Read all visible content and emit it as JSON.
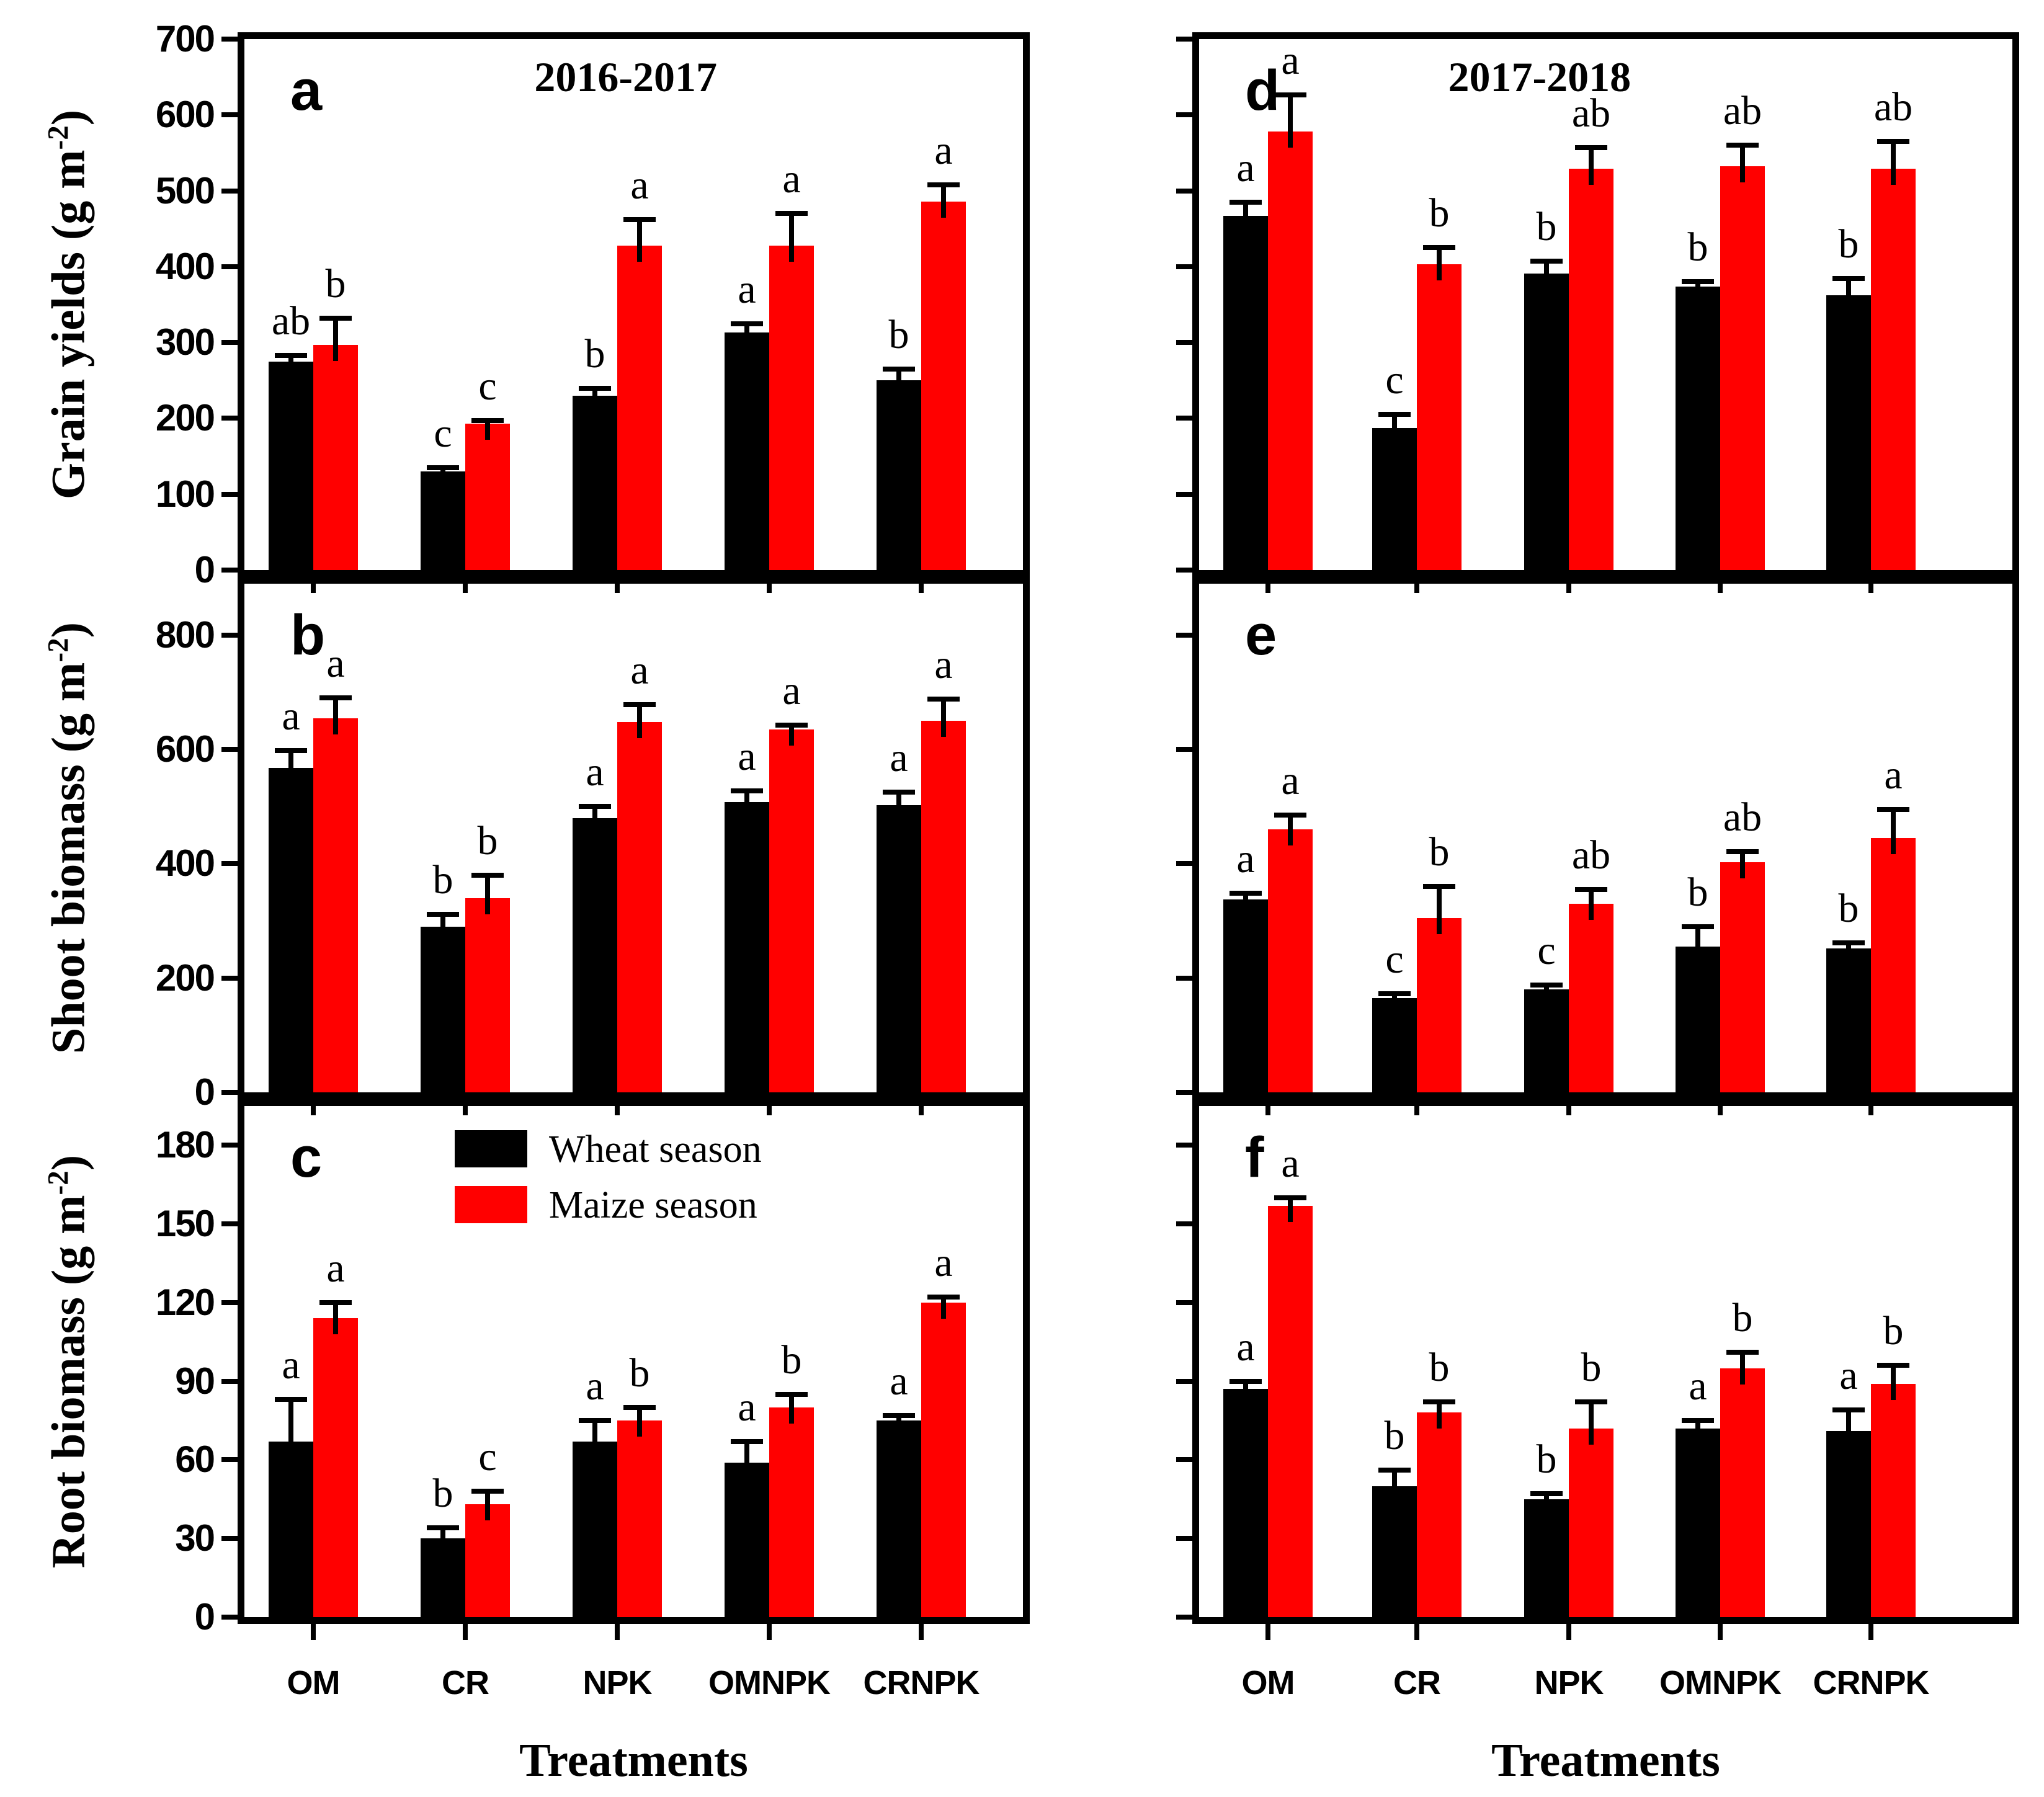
{
  "figure": {
    "background": "#ffffff",
    "bar_colors": {
      "wheat": "#000000",
      "maize": "#ff0000"
    },
    "legend": {
      "items": [
        {
          "label": "Wheat season",
          "color": "#000000"
        },
        {
          "label": "Maize season",
          "color": "#ff0000"
        }
      ],
      "position": "inside panel c, top center"
    },
    "x_axis": {
      "label": "Treatments",
      "categories": [
        "OM",
        "CR",
        "NPK",
        "OMNPK",
        "CRNPK"
      ]
    },
    "columns": [
      {
        "title": "2016-2017"
      },
      {
        "title": "2017-2018"
      }
    ],
    "rows": [
      {
        "ylabel": "Grain yields (g m⁻²)",
        "ylim": [
          0,
          700
        ],
        "yticks": [
          0,
          100,
          200,
          300,
          400,
          500,
          600,
          700
        ]
      },
      {
        "ylabel": "Shoot biomass (g m⁻²)",
        "ylim": [
          0,
          890
        ],
        "yticks": [
          0,
          200,
          400,
          600,
          800
        ]
      },
      {
        "ylabel": "Root biomass (g m⁻²)",
        "ylim": [
          0,
          195
        ],
        "yticks": [
          0,
          30,
          60,
          90,
          120,
          150,
          180
        ]
      }
    ]
  },
  "chart_data": [
    {
      "type": "bar",
      "panel_letter": "a",
      "row": 0,
      "col": 0,
      "title": "2016-2017",
      "categories": [
        "OM",
        "CR",
        "NPK",
        "OMNPK",
        "CRNPK"
      ],
      "ylim": [
        0,
        700
      ],
      "grid": false,
      "series": [
        {
          "name": "Wheat season",
          "color_key": "wheat",
          "values": [
            275,
            130,
            230,
            313,
            250
          ],
          "errors": [
            8,
            5,
            10,
            12,
            15
          ],
          "sig_letters": [
            "ab",
            "c",
            "b",
            "a",
            "b"
          ]
        },
        {
          "name": "Maize season",
          "color_key": "maize",
          "values": [
            297,
            193,
            428,
            428,
            486
          ],
          "errors": [
            35,
            4,
            34,
            42,
            22
          ],
          "sig_letters": [
            "b",
            "c",
            "a",
            "a",
            "a"
          ]
        }
      ]
    },
    {
      "type": "bar",
      "panel_letter": "d",
      "row": 0,
      "col": 1,
      "title": "2017-2018",
      "categories": [
        "OM",
        "CR",
        "NPK",
        "OMNPK",
        "CRNPK"
      ],
      "ylim": [
        0,
        700
      ],
      "grid": false,
      "series": [
        {
          "name": "Wheat season",
          "color_key": "wheat",
          "values": [
            467,
            187,
            391,
            374,
            362
          ],
          "errors": [
            18,
            18,
            16,
            6,
            22
          ],
          "sig_letters": [
            "a",
            "c",
            "b",
            "b",
            "b"
          ]
        },
        {
          "name": "Maize season",
          "color_key": "maize",
          "values": [
            578,
            403,
            529,
            532,
            529
          ],
          "errors": [
            48,
            22,
            28,
            28,
            36
          ],
          "sig_letters": [
            "a",
            "b",
            "ab",
            "ab",
            "ab"
          ]
        }
      ]
    },
    {
      "type": "bar",
      "panel_letter": "b",
      "row": 1,
      "col": 0,
      "title": "",
      "categories": [
        "OM",
        "CR",
        "NPK",
        "OMNPK",
        "CRNPK"
      ],
      "ylim": [
        0,
        890
      ],
      "grid": false,
      "series": [
        {
          "name": "Wheat season",
          "color_key": "wheat",
          "values": [
            568,
            290,
            480,
            508,
            503
          ],
          "errors": [
            30,
            22,
            20,
            20,
            22
          ],
          "sig_letters": [
            "a",
            "b",
            "a",
            "a",
            "a"
          ]
        },
        {
          "name": "Maize season",
          "color_key": "maize",
          "values": [
            655,
            340,
            648,
            635,
            650
          ],
          "errors": [
            35,
            40,
            30,
            7,
            38
          ],
          "sig_letters": [
            "a",
            "b",
            "a",
            "a",
            "a"
          ]
        }
      ]
    },
    {
      "type": "bar",
      "panel_letter": "e",
      "row": 1,
      "col": 1,
      "title": "",
      "categories": [
        "OM",
        "CR",
        "NPK",
        "OMNPK",
        "CRNPK"
      ],
      "ylim": [
        0,
        890
      ],
      "grid": false,
      "series": [
        {
          "name": "Wheat season",
          "color_key": "wheat",
          "values": [
            338,
            165,
            180,
            255,
            252
          ],
          "errors": [
            10,
            8,
            8,
            35,
            10
          ],
          "sig_letters": [
            "a",
            "c",
            "c",
            "b",
            "b"
          ]
        },
        {
          "name": "Maize season",
          "color_key": "maize",
          "values": [
            460,
            305,
            330,
            403,
            445
          ],
          "errors": [
            25,
            55,
            25,
            18,
            50
          ],
          "sig_letters": [
            "a",
            "b",
            "ab",
            "ab",
            "a"
          ]
        }
      ]
    },
    {
      "type": "bar",
      "panel_letter": "c",
      "row": 2,
      "col": 0,
      "title": "",
      "categories": [
        "OM",
        "CR",
        "NPK",
        "OMNPK",
        "CRNPK"
      ],
      "ylim": [
        0,
        195
      ],
      "grid": false,
      "series": [
        {
          "name": "Wheat season",
          "color_key": "wheat",
          "values": [
            67,
            30,
            67,
            59,
            75
          ],
          "errors": [
            16,
            4,
            8,
            8,
            2
          ],
          "sig_letters": [
            "a",
            "b",
            "a",
            "a",
            "a"
          ]
        },
        {
          "name": "Maize season",
          "color_key": "maize",
          "values": [
            114,
            43,
            75,
            80,
            120
          ],
          "errors": [
            6,
            5,
            5,
            5,
            2
          ],
          "sig_letters": [
            "a",
            "c",
            "b",
            "b",
            "a"
          ]
        }
      ]
    },
    {
      "type": "bar",
      "panel_letter": "f",
      "row": 2,
      "col": 1,
      "title": "",
      "categories": [
        "OM",
        "CR",
        "NPK",
        "OMNPK",
        "CRNPK"
      ],
      "ylim": [
        0,
        195
      ],
      "grid": false,
      "series": [
        {
          "name": "Wheat season",
          "color_key": "wheat",
          "values": [
            87,
            50,
            45,
            72,
            71
          ],
          "errors": [
            3,
            6,
            2,
            3,
            8
          ],
          "sig_letters": [
            "a",
            "b",
            "b",
            "a",
            "a"
          ]
        },
        {
          "name": "Maize season",
          "color_key": "maize",
          "values": [
            157,
            78,
            72,
            95,
            89
          ],
          "errors": [
            3,
            4,
            10,
            6,
            7
          ],
          "sig_letters": [
            "a",
            "b",
            "b",
            "b",
            "b"
          ]
        }
      ]
    }
  ]
}
